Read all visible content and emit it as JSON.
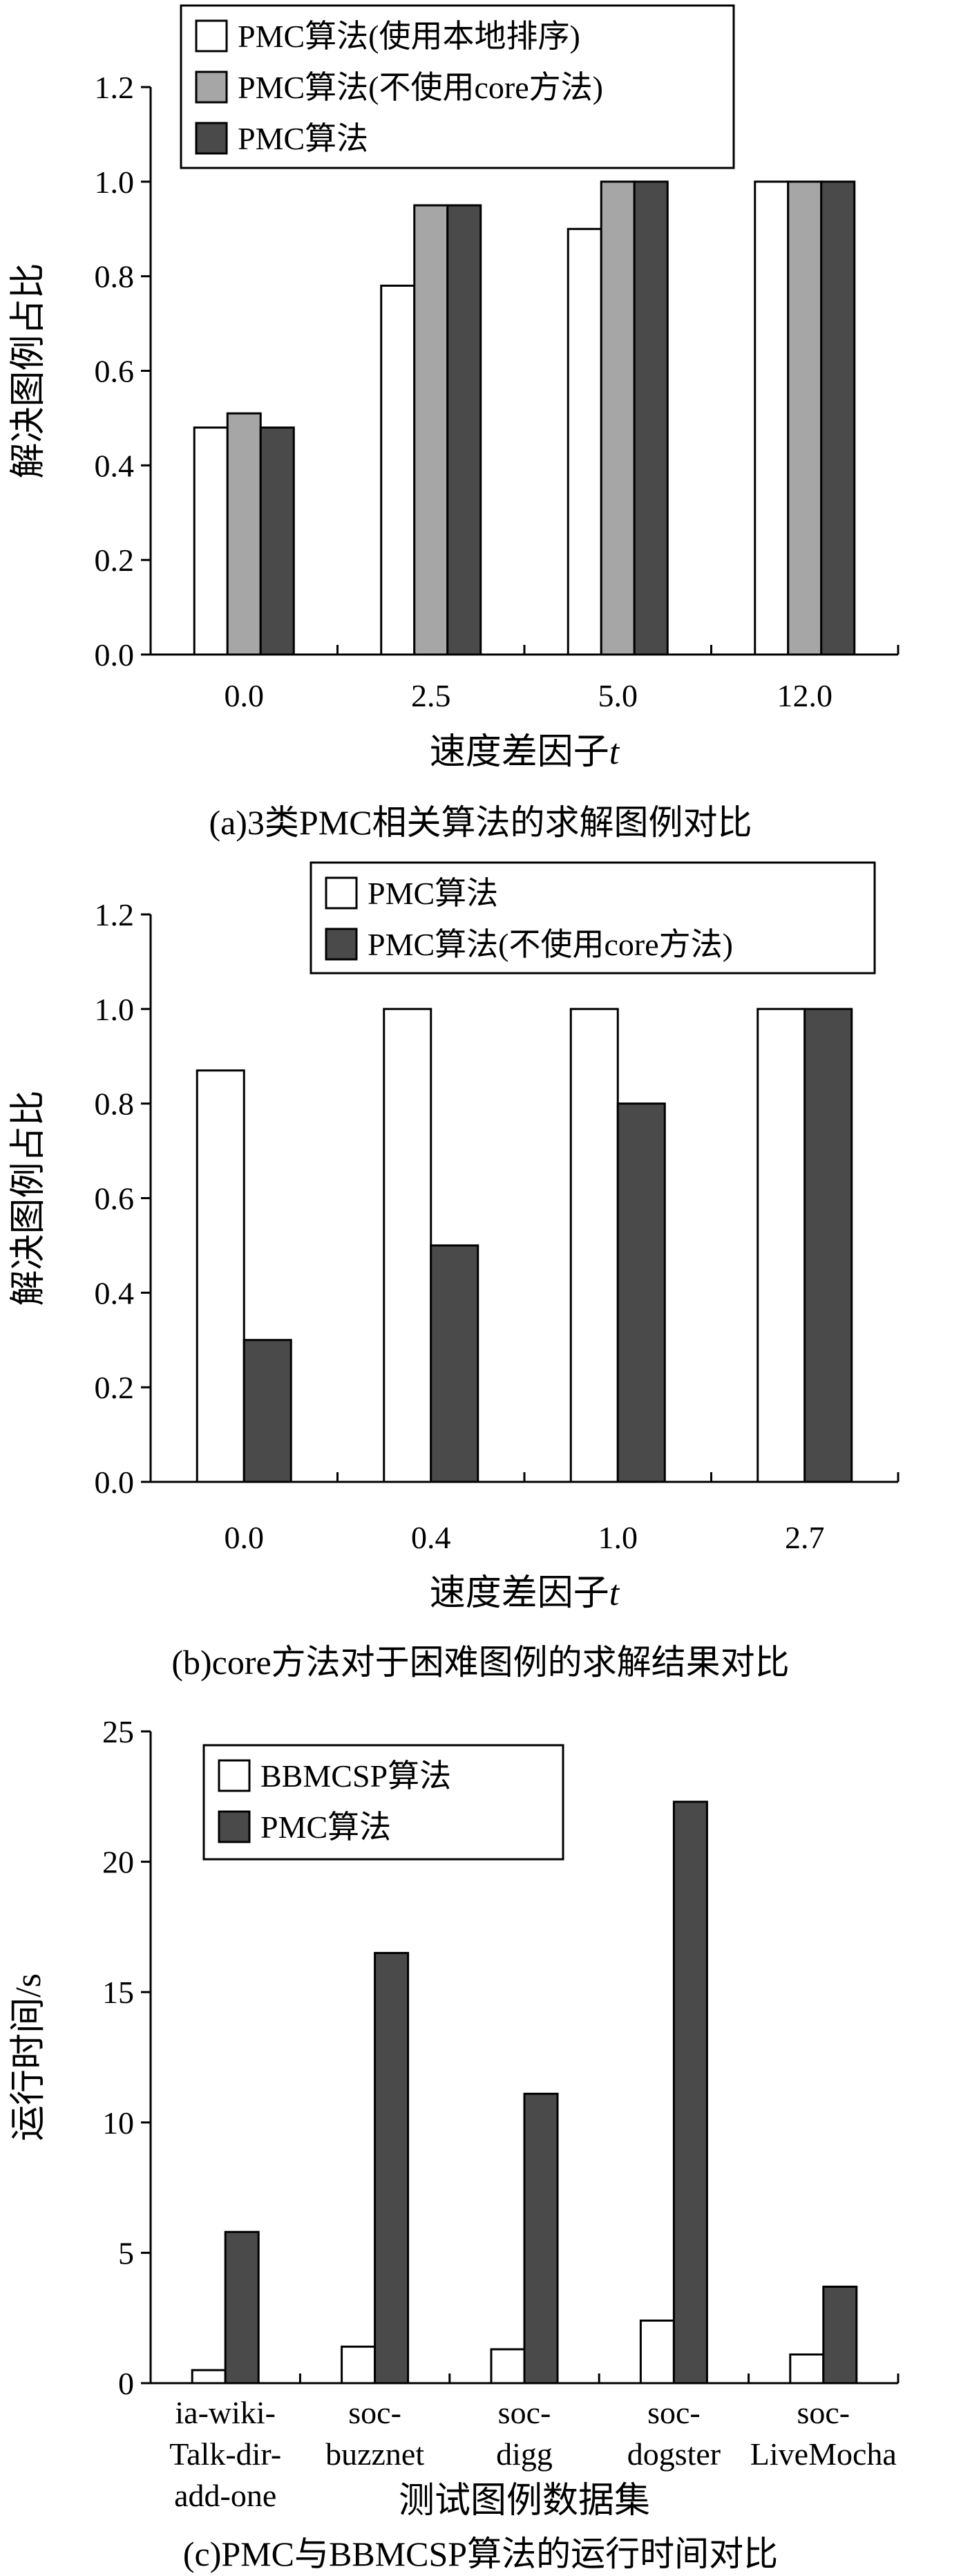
{
  "colors": {
    "white": "#ffffff",
    "gray": "#a6a6a6",
    "dark": "#4a4a4a",
    "stroke": "#000000"
  },
  "panels": [
    {
      "caption": "(a)3类PMC相关算法的求解图例对比",
      "chart_data": {
        "type": "bar",
        "xlabel": "速度差因子t",
        "ylabel": "解决图例占比",
        "ylim": [
          0,
          1.2
        ],
        "yticks": [
          "0.0",
          "0.2",
          "0.4",
          "0.6",
          "0.8",
          "1.0",
          "1.2"
        ],
        "categories": [
          "0.0",
          "2.5",
          "5.0",
          "12.0"
        ],
        "legend_position": "top-left",
        "series": [
          {
            "name": "PMC算法(使用本地排序)",
            "color": "#ffffff",
            "values": [
              0.48,
              0.78,
              0.9,
              1.0
            ]
          },
          {
            "name": "PMC算法(不使用core方法)",
            "color": "#a6a6a6",
            "values": [
              0.51,
              0.95,
              1.0,
              1.0
            ]
          },
          {
            "name": "PMC算法",
            "color": "#4a4a4a",
            "values": [
              0.48,
              0.95,
              1.0,
              1.0
            ]
          }
        ]
      }
    },
    {
      "caption": "(b)core方法对于困难图例的求解结果对比",
      "chart_data": {
        "type": "bar",
        "xlabel": "速度差因子t",
        "ylabel": "解决图例占比",
        "ylim": [
          0,
          1.2
        ],
        "yticks": [
          "0.0",
          "0.2",
          "0.4",
          "0.6",
          "0.8",
          "1.0",
          "1.2"
        ],
        "categories": [
          "0.0",
          "0.4",
          "1.0",
          "2.7"
        ],
        "legend_position": "top-right",
        "series": [
          {
            "name": "PMC算法",
            "color": "#ffffff",
            "values": [
              0.87,
              1.0,
              1.0,
              1.0
            ]
          },
          {
            "name": "PMC算法(不使用core方法)",
            "color": "#4a4a4a",
            "values": [
              0.3,
              0.5,
              0.8,
              1.0
            ]
          }
        ]
      }
    },
    {
      "caption": "(c)PMC与BBMCSP算法的运行时间对比",
      "chart_data": {
        "type": "bar",
        "xlabel": "测试图例数据集",
        "ylabel": "运行时间/s",
        "ylim": [
          0,
          25
        ],
        "yticks": [
          "0",
          "5",
          "10",
          "15",
          "20",
          "25"
        ],
        "categories": [
          [
            "ia-wiki-",
            "Talk-dir-",
            "add-one"
          ],
          [
            "soc-",
            "buzznet"
          ],
          [
            "soc-",
            "digg"
          ],
          [
            "soc-",
            "dogster"
          ],
          [
            "soc-",
            "LiveMocha"
          ]
        ],
        "legend_position": "top-left",
        "series": [
          {
            "name": "BBMCSP算法",
            "color": "#ffffff",
            "values": [
              0.5,
              1.4,
              1.3,
              2.4,
              1.1
            ]
          },
          {
            "name": "PMC算法",
            "color": "#4a4a4a",
            "values": [
              5.8,
              16.5,
              11.1,
              22.3,
              3.7
            ]
          }
        ]
      }
    }
  ]
}
